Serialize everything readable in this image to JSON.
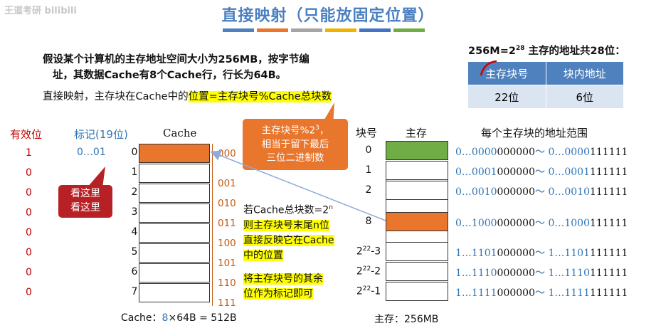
{
  "title": "直接映射（只能放固定位置）",
  "watermark": "王道考研 bilibili",
  "colors": {
    "title": "#4a7fc1",
    "bars": [
      "#4e81bd",
      "#e8762d",
      "#a5a5a5",
      "#f0b400",
      "#4472c4",
      "#70ad47"
    ],
    "orange": "#e8762d",
    "green": "#70ad47",
    "red": "#b72025"
  },
  "intro": {
    "line1": "假设某个计算机的主存地址空间大小为256MB，按字节编",
    "line2": "址，其数据Cache有8个Cache行，行长为64B。",
    "line3_prefix": "直接映射，主存块在Cache中的",
    "line3_highlight": "位置=主存块号%Cache总块数"
  },
  "address": {
    "caption": "256M=2^28 主存的地址共28位：",
    "caption_base": "256M=2",
    "caption_exp": "28",
    "caption_rest": " 主存的地址共28位：",
    "headers": [
      "主存块号",
      "块内地址"
    ],
    "values": [
      "22位",
      "6位"
    ]
  },
  "callout_mod": {
    "line1_base": "主存块号%2",
    "line1_exp": "3",
    "line1_suffix": "，",
    "line2": "相当于留下最后",
    "line3": "三位二进制数"
  },
  "callout_look": {
    "line1": "看这里",
    "line2": "看这里"
  },
  "cache": {
    "valid_header": "有效位",
    "tag_header": "标记(19位)",
    "title": "Cache",
    "valid_bits": [
      "1",
      "0",
      "0",
      "0",
      "0",
      "0",
      "0",
      "0"
    ],
    "first_tag": "0…01",
    "line_numbers": [
      "0",
      "1",
      "2",
      "3",
      "4",
      "5",
      "6",
      "7"
    ],
    "binary_index": [
      "000",
      "001",
      "010",
      "011",
      "100",
      "101",
      "110",
      "111"
    ],
    "footer_prefix": "Cache：",
    "footer_count": "8",
    "footer_rest": "×64B = 512B"
  },
  "note": {
    "line1_base": "若Cache总块数=2",
    "line1_exp": "n",
    "line2": "则主存块号末尾n位",
    "line3": "直接反映它在Cache",
    "line4": "中的位置",
    "line5": "将主存块号的其余",
    "line6": "位作为标记即可"
  },
  "memory": {
    "block_header": "块号",
    "mem_header": "主存",
    "range_header": "每个主存块的地址范围",
    "block_labels": [
      "0",
      "1",
      "2",
      "8",
      "2^22-3",
      "2^22-2",
      "2^22-1"
    ],
    "block_label_parts": [
      {
        "base": "0",
        "exp": ""
      },
      {
        "base": "1",
        "exp": ""
      },
      {
        "base": "2",
        "exp": ""
      },
      {
        "base": "8",
        "exp": ""
      },
      {
        "base": "2",
        "exp": "22",
        "suffix": "-3"
      },
      {
        "base": "2",
        "exp": "22",
        "suffix": "-2"
      },
      {
        "base": "2",
        "exp": "22",
        "suffix": "-1"
      }
    ],
    "ranges": [
      {
        "s1": "0…0000",
        "s2": "000000",
        "s3": "～ 0…0000",
        "s4": "111111"
      },
      {
        "s1": "0…0001",
        "s2": "000000",
        "s3": "～ 0…0001",
        "s4": "111111"
      },
      {
        "s1": "0…0010",
        "s2": "000000",
        "s3": "～ 0…0010",
        "s4": "111111"
      },
      {
        "s1": "0…1000",
        "s2": "000000",
        "s3": "～ 0…1000",
        "s4": "111111"
      },
      {
        "s1": "1…1101",
        "s2": "000000",
        "s3": "～ 1…1101",
        "s4": "111111"
      },
      {
        "s1": "1…1110",
        "s2": "000000",
        "s3": "～ 1…1110",
        "s4": "111111"
      },
      {
        "s1": "1…1111",
        "s2": "000000",
        "s3": "～ 1…1111",
        "s4": "111111"
      }
    ],
    "footer": "主存：256MB"
  }
}
